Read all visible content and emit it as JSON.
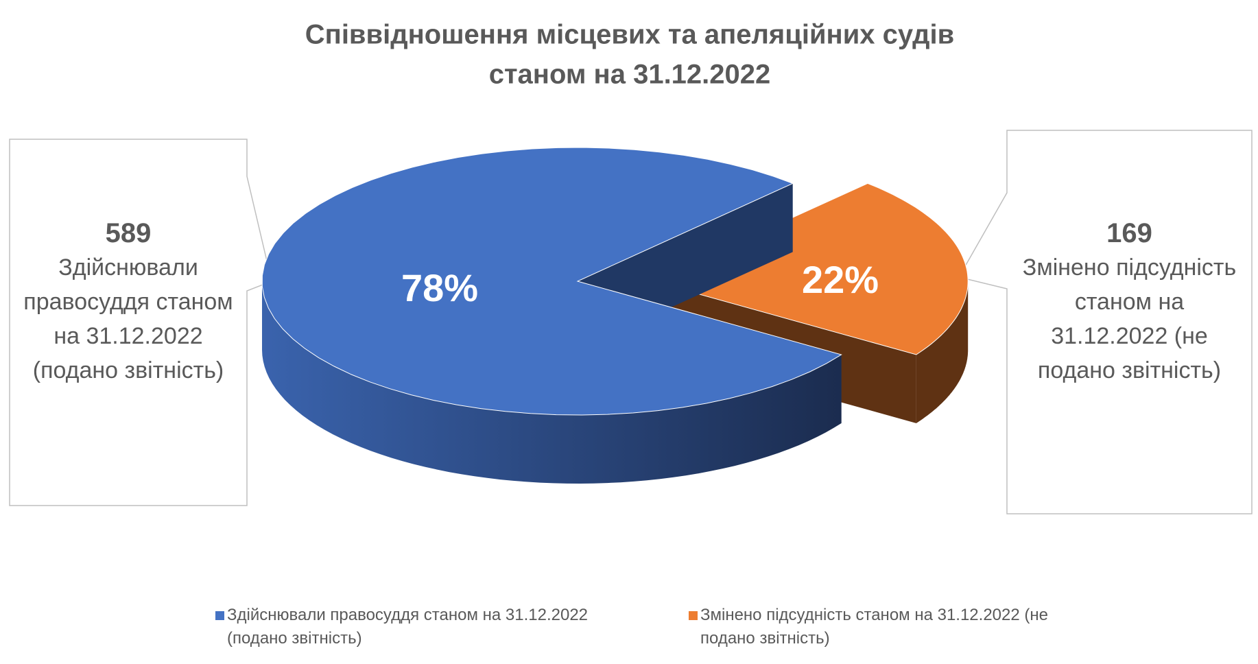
{
  "chart_data": {
    "type": "pie",
    "title": [
      "Співвідношення місцевих та апеляційних судів",
      "станом на 31.12.2022"
    ],
    "categories": [
      "Здійснювали правосуддя станом на 31.12.2022 (подано звітність)",
      "Змінено підсудність станом на 31.12.2022 (не подано звітність)"
    ],
    "values": [
      589,
      169
    ],
    "percent_labels": [
      "78%",
      "22%"
    ],
    "colors": [
      "#4472c4",
      "#ed7d31"
    ],
    "legend": "bottom"
  }
}
